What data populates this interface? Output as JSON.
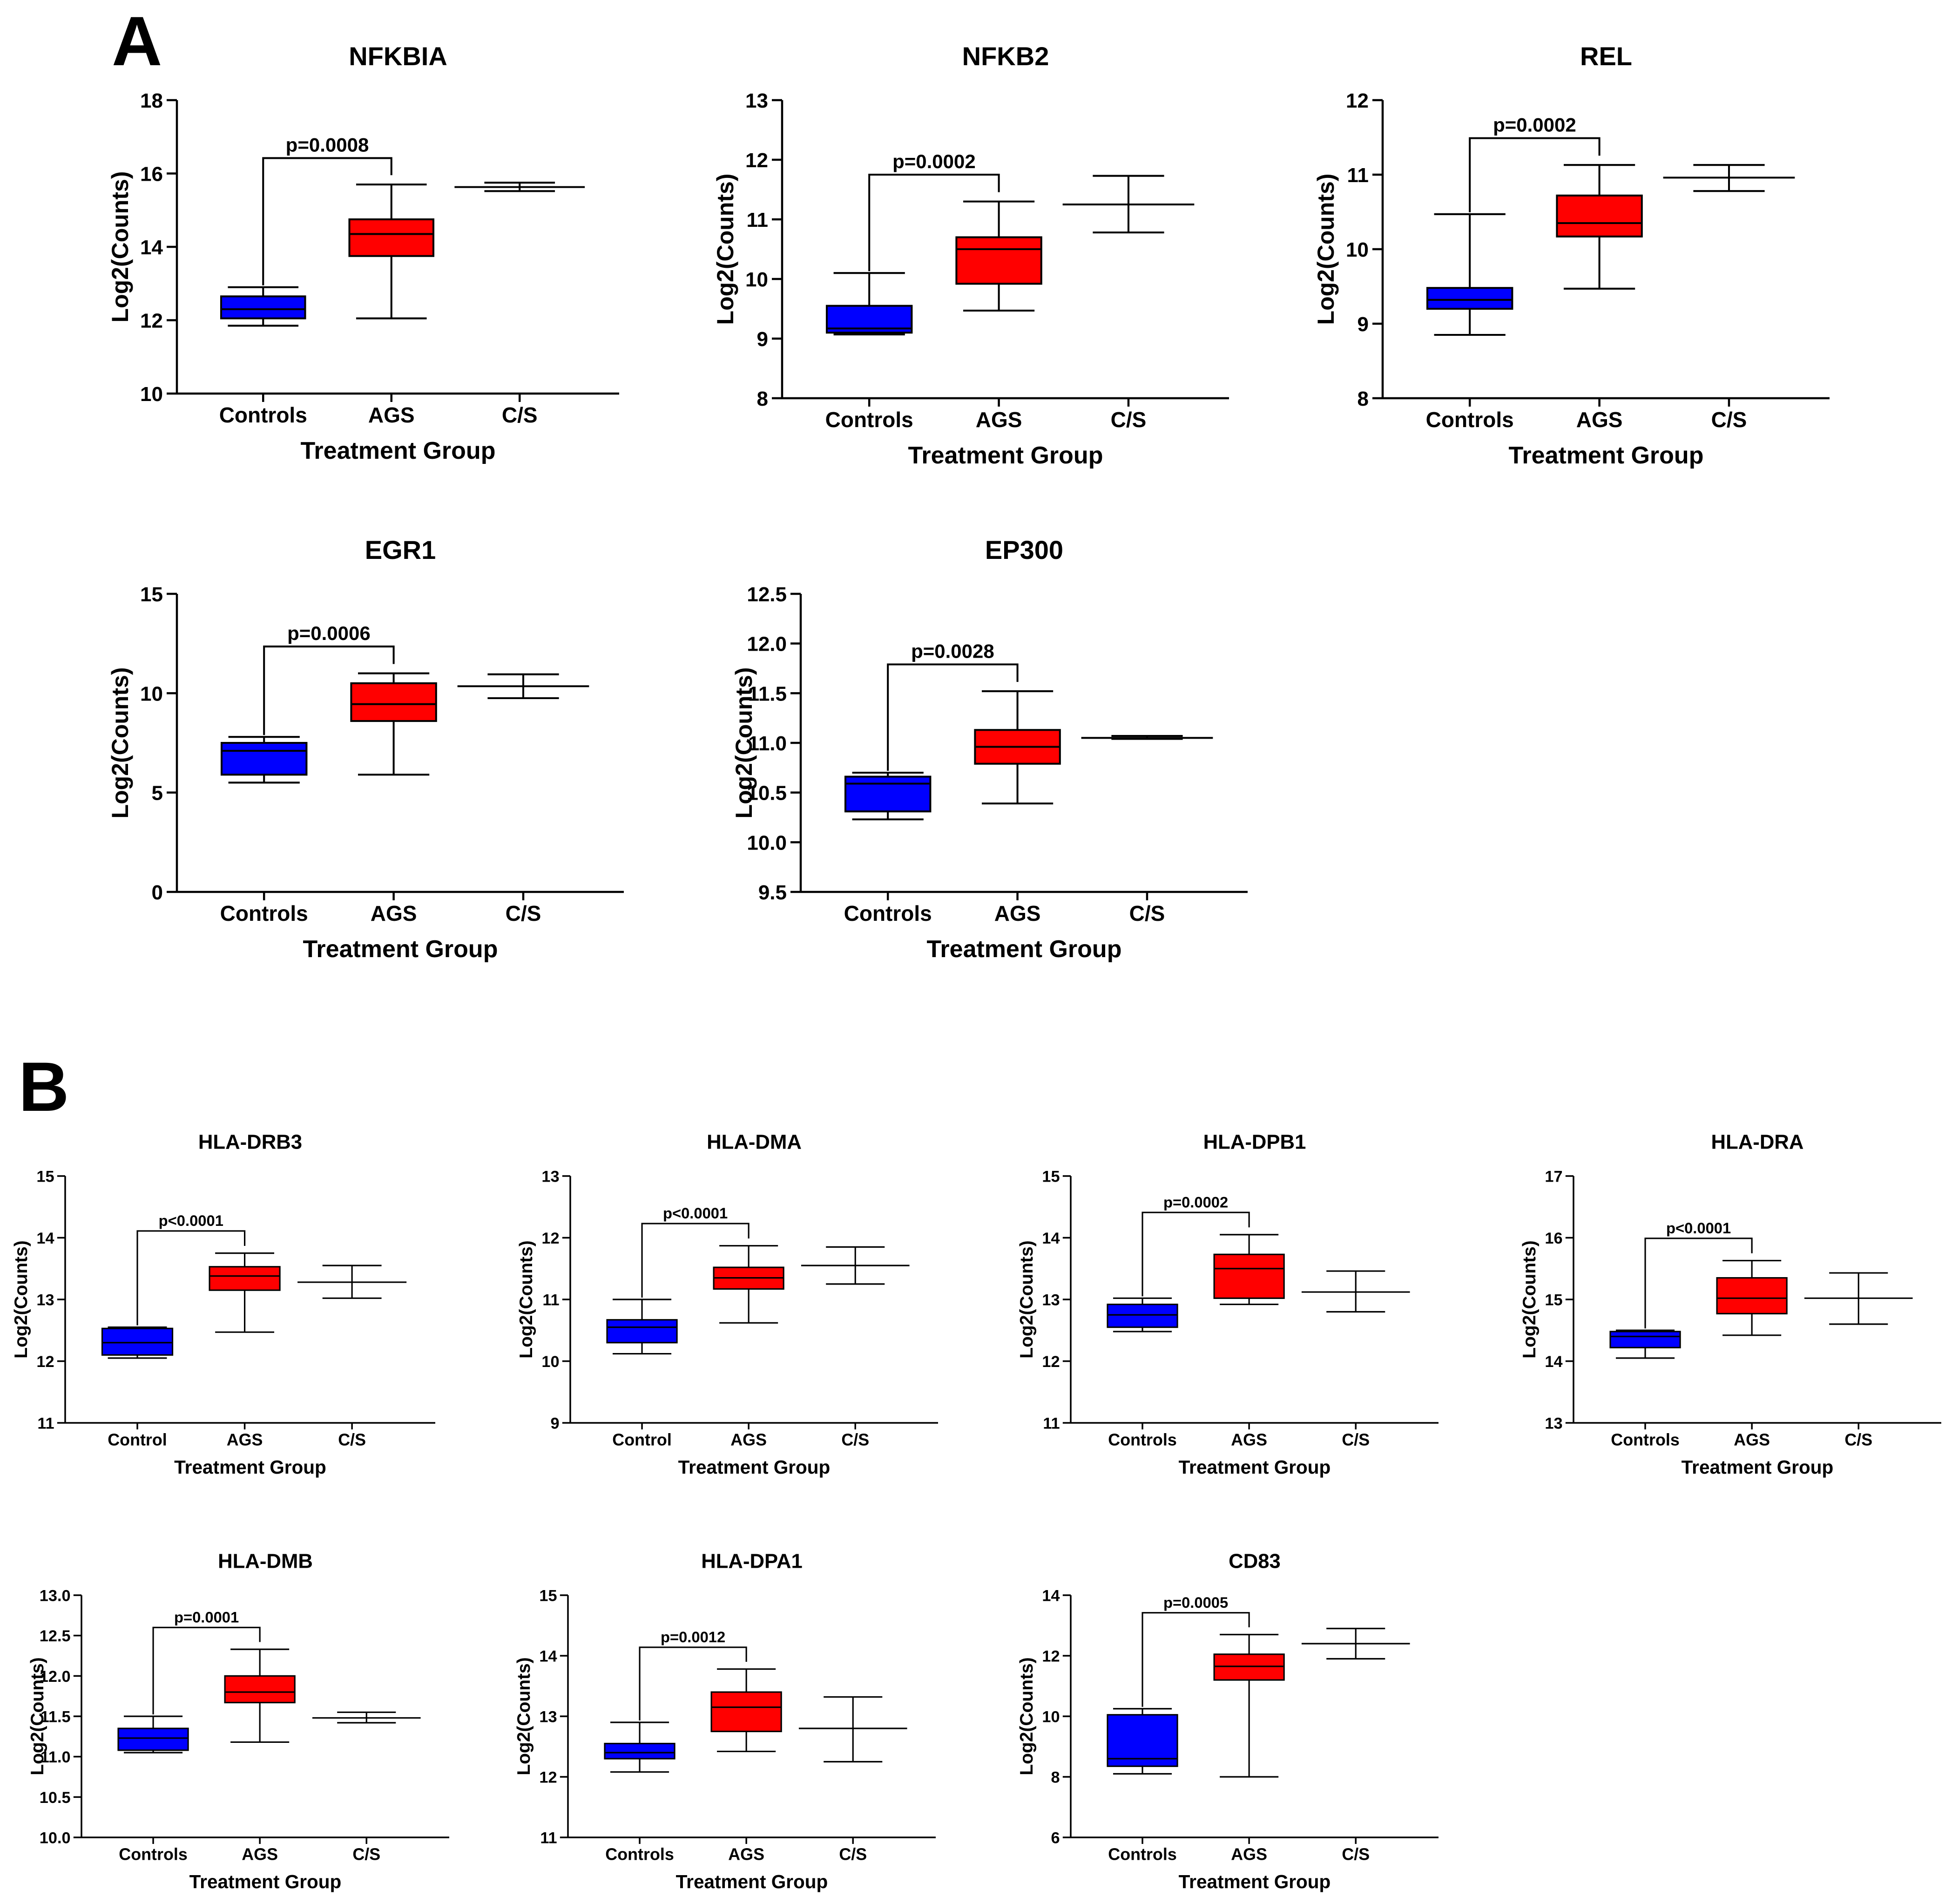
{
  "panels": [
    {
      "letter": "A"
    },
    {
      "letter": "B"
    }
  ],
  "colors": {
    "Controls": "#0000ff",
    "AGS": "#ff0000",
    "C/S": "#000000",
    "axis": "#000000"
  },
  "chart_data": [
    {
      "type": "box",
      "panel": "A",
      "title": "NFKBIA",
      "xlabel": "Treatment Group",
      "ylabel": "Log2(Counts)",
      "ylim": [
        10,
        18
      ],
      "yticks": [
        10,
        12,
        14,
        16,
        18
      ],
      "ytick_labels": [
        "10",
        "12",
        "14",
        "16",
        "18"
      ],
      "categories": [
        "Controls",
        "AGS",
        "C/S"
      ],
      "boxes": [
        {
          "group": "Controls",
          "min": 11.85,
          "q1": 12.05,
          "median": 12.3,
          "q3": 12.65,
          "max": 12.9
        },
        {
          "group": "AGS",
          "min": 12.05,
          "q1": 13.75,
          "median": 14.35,
          "q3": 14.75,
          "max": 15.7
        },
        {
          "group": "C/S",
          "min": 15.52,
          "q1": 15.63,
          "median": 15.63,
          "q3": 15.63,
          "max": 15.75
        }
      ],
      "comparison": {
        "from": "Controls",
        "to": "AGS",
        "label": "p=0.0008"
      }
    },
    {
      "type": "box",
      "panel": "A",
      "title": "NFKB2",
      "xlabel": "Treatment Group",
      "ylabel": "Log2(Counts)",
      "ylim": [
        8,
        13
      ],
      "yticks": [
        8,
        9,
        10,
        11,
        12,
        13
      ],
      "ytick_labels": [
        "8",
        "9",
        "10",
        "11",
        "12",
        "13"
      ],
      "categories": [
        "Controls",
        "AGS",
        "C/S"
      ],
      "boxes": [
        {
          "group": "Controls",
          "min": 9.07,
          "q1": 9.1,
          "median": 9.17,
          "q3": 9.55,
          "max": 10.1
        },
        {
          "group": "AGS",
          "min": 9.47,
          "q1": 9.92,
          "median": 10.5,
          "q3": 10.7,
          "max": 11.3
        },
        {
          "group": "C/S",
          "min": 10.78,
          "q1": 11.25,
          "median": 11.25,
          "q3": 11.25,
          "max": 11.73
        }
      ],
      "comparison": {
        "from": "Controls",
        "to": "AGS",
        "label": "p=0.0002"
      }
    },
    {
      "type": "box",
      "panel": "A",
      "title": "REL",
      "xlabel": "Treatment Group",
      "ylabel": "Log2(Counts)",
      "ylim": [
        8,
        12
      ],
      "yticks": [
        8,
        9,
        10,
        11,
        12
      ],
      "ytick_labels": [
        "8",
        "9",
        "10",
        "11",
        "12"
      ],
      "categories": [
        "Controls",
        "AGS",
        "C/S"
      ],
      "boxes": [
        {
          "group": "Controls",
          "min": 8.85,
          "q1": 9.2,
          "median": 9.32,
          "q3": 9.48,
          "max": 10.47
        },
        {
          "group": "AGS",
          "min": 9.47,
          "q1": 10.17,
          "median": 10.35,
          "q3": 10.72,
          "max": 11.13
        },
        {
          "group": "C/S",
          "min": 10.78,
          "q1": 10.96,
          "median": 10.96,
          "q3": 10.96,
          "max": 11.13
        }
      ],
      "comparison": {
        "from": "Controls",
        "to": "AGS",
        "label": "p=0.0002"
      }
    },
    {
      "type": "box",
      "panel": "A",
      "title": "EGR1",
      "xlabel": "Treatment Group",
      "ylabel": "Log2(Counts)",
      "ylim": [
        0,
        15
      ],
      "yticks": [
        0,
        5,
        10,
        15
      ],
      "ytick_labels": [
        "0",
        "5",
        "10",
        "15"
      ],
      "categories": [
        "Controls",
        "AGS",
        "C/S"
      ],
      "boxes": [
        {
          "group": "Controls",
          "min": 5.5,
          "q1": 5.9,
          "median": 7.1,
          "q3": 7.5,
          "max": 7.8
        },
        {
          "group": "AGS",
          "min": 5.9,
          "q1": 8.6,
          "median": 9.45,
          "q3": 10.5,
          "max": 11.0
        },
        {
          "group": "C/S",
          "min": 9.75,
          "q1": 10.35,
          "median": 10.35,
          "q3": 10.35,
          "max": 10.95
        }
      ],
      "comparison": {
        "from": "Controls",
        "to": "AGS",
        "label": "p=0.0006"
      }
    },
    {
      "type": "box",
      "panel": "A",
      "title": "EP300",
      "xlabel": "Treatment Group",
      "ylabel": "Log2(Counts)",
      "ylim": [
        9.5,
        12.5
      ],
      "yticks": [
        9.5,
        10.0,
        10.5,
        11.0,
        11.5,
        12.0,
        12.5
      ],
      "ytick_labels": [
        "9.5",
        "10.0",
        "10.5",
        "11.0",
        "11.5",
        "12.0",
        "12.5"
      ],
      "categories": [
        "Controls",
        "AGS",
        "C/S"
      ],
      "boxes": [
        {
          "group": "Controls",
          "min": 10.23,
          "q1": 10.31,
          "median": 10.59,
          "q3": 10.66,
          "max": 10.7
        },
        {
          "group": "AGS",
          "min": 10.39,
          "q1": 10.79,
          "median": 10.96,
          "q3": 11.13,
          "max": 11.52
        },
        {
          "group": "C/S",
          "min": 11.04,
          "q1": 11.05,
          "median": 11.05,
          "q3": 11.05,
          "max": 11.07
        }
      ],
      "comparison": {
        "from": "Controls",
        "to": "AGS",
        "label": "p=0.0028"
      }
    },
    {
      "type": "box",
      "panel": "B",
      "title": "HLA-DRB3",
      "xlabel": "Treatment Group",
      "ylabel": "Log2(Counts)",
      "ylim": [
        11,
        15
      ],
      "yticks": [
        11,
        12,
        13,
        14,
        15
      ],
      "ytick_labels": [
        "11",
        "12",
        "13",
        "14",
        "15"
      ],
      "categories": [
        "Control",
        "AGS",
        "C/S"
      ],
      "boxes": [
        {
          "group": "Control",
          "min": 12.05,
          "q1": 12.1,
          "median": 12.3,
          "q3": 12.53,
          "max": 12.55
        },
        {
          "group": "AGS",
          "min": 12.47,
          "q1": 13.15,
          "median": 13.38,
          "q3": 13.53,
          "max": 13.75
        },
        {
          "group": "C/S",
          "min": 13.02,
          "q1": 13.28,
          "median": 13.28,
          "q3": 13.28,
          "max": 13.55
        }
      ],
      "comparison": {
        "from": "Control",
        "to": "AGS",
        "label": "p<0.0001"
      }
    },
    {
      "type": "box",
      "panel": "B",
      "title": "HLA-DMA",
      "xlabel": "Treatment Group",
      "ylabel": "Log2(Counts)",
      "ylim": [
        9,
        13
      ],
      "yticks": [
        9,
        10,
        11,
        12,
        13
      ],
      "ytick_labels": [
        "9",
        "10",
        "11",
        "12",
        "13"
      ],
      "categories": [
        "Control",
        "AGS",
        "C/S"
      ],
      "boxes": [
        {
          "group": "Control",
          "min": 10.12,
          "q1": 10.3,
          "median": 10.55,
          "q3": 10.67,
          "max": 11.0
        },
        {
          "group": "AGS",
          "min": 10.62,
          "q1": 11.17,
          "median": 11.35,
          "q3": 11.52,
          "max": 11.87
        },
        {
          "group": "C/S",
          "min": 11.25,
          "q1": 11.55,
          "median": 11.55,
          "q3": 11.55,
          "max": 11.85
        }
      ],
      "comparison": {
        "from": "Control",
        "to": "AGS",
        "label": "p<0.0001"
      }
    },
    {
      "type": "box",
      "panel": "B",
      "title": "HLA-DPB1",
      "xlabel": "Treatment Group",
      "ylabel": "Log2(Counts)",
      "ylim": [
        11,
        15
      ],
      "yticks": [
        11,
        12,
        13,
        14,
        15
      ],
      "ytick_labels": [
        "11",
        "12",
        "13",
        "14",
        "15"
      ],
      "categories": [
        "Controls",
        "AGS",
        "C/S"
      ],
      "boxes": [
        {
          "group": "Controls",
          "min": 12.48,
          "q1": 12.55,
          "median": 12.75,
          "q3": 12.92,
          "max": 13.02
        },
        {
          "group": "AGS",
          "min": 12.92,
          "q1": 13.02,
          "median": 13.5,
          "q3": 13.73,
          "max": 14.05
        },
        {
          "group": "C/S",
          "min": 12.8,
          "q1": 13.12,
          "median": 13.12,
          "q3": 13.12,
          "max": 13.46
        }
      ],
      "comparison": {
        "from": "Controls",
        "to": "AGS",
        "label": "p=0.0002"
      }
    },
    {
      "type": "box",
      "panel": "B",
      "title": "HLA-DRA",
      "xlabel": "Treatment Group",
      "ylabel": "Log2(Counts)",
      "ylim": [
        13,
        17
      ],
      "yticks": [
        13,
        14,
        15,
        16,
        17
      ],
      "ytick_labels": [
        "13",
        "14",
        "15",
        "16",
        "17"
      ],
      "categories": [
        "Controls",
        "AGS",
        "C/S"
      ],
      "boxes": [
        {
          "group": "Controls",
          "min": 14.05,
          "q1": 14.22,
          "median": 14.4,
          "q3": 14.48,
          "max": 14.5
        },
        {
          "group": "AGS",
          "min": 14.42,
          "q1": 14.77,
          "median": 15.02,
          "q3": 15.35,
          "max": 15.63
        },
        {
          "group": "C/S",
          "min": 14.6,
          "q1": 15.02,
          "median": 15.02,
          "q3": 15.02,
          "max": 15.43
        }
      ],
      "comparison": {
        "from": "Controls",
        "to": "AGS",
        "label": "p<0.0001"
      }
    },
    {
      "type": "box",
      "panel": "B",
      "title": "HLA-DMB",
      "xlabel": "Treatment Group",
      "ylabel": "Log2(Counts)",
      "ylim": [
        10.0,
        13.0
      ],
      "yticks": [
        10.0,
        10.5,
        11.0,
        11.5,
        12.0,
        12.5,
        13.0
      ],
      "ytick_labels": [
        "10.0",
        "10.5",
        "11.0",
        "11.5",
        "12.0",
        "12.5",
        "13.0"
      ],
      "categories": [
        "Controls",
        "AGS",
        "C/S"
      ],
      "boxes": [
        {
          "group": "Controls",
          "min": 11.05,
          "q1": 11.08,
          "median": 11.23,
          "q3": 11.35,
          "max": 11.5
        },
        {
          "group": "AGS",
          "min": 11.18,
          "q1": 11.67,
          "median": 11.8,
          "q3": 12.0,
          "max": 12.33
        },
        {
          "group": "C/S",
          "min": 11.42,
          "q1": 11.48,
          "median": 11.48,
          "q3": 11.48,
          "max": 11.55
        }
      ],
      "comparison": {
        "from": "Controls",
        "to": "AGS",
        "label": "p=0.0001"
      }
    },
    {
      "type": "box",
      "panel": "B",
      "title": "HLA-DPA1",
      "xlabel": "Treatment Group",
      "ylabel": "Log2(Counts)",
      "ylim": [
        11,
        15
      ],
      "yticks": [
        11,
        12,
        13,
        14,
        15
      ],
      "ytick_labels": [
        "11",
        "12",
        "13",
        "14",
        "15"
      ],
      "categories": [
        "Controls",
        "AGS",
        "C/S"
      ],
      "boxes": [
        {
          "group": "Controls",
          "min": 12.08,
          "q1": 12.3,
          "median": 12.4,
          "q3": 12.55,
          "max": 12.9
        },
        {
          "group": "AGS",
          "min": 12.42,
          "q1": 12.75,
          "median": 13.15,
          "q3": 13.4,
          "max": 13.78
        },
        {
          "group": "C/S",
          "min": 12.25,
          "q1": 12.8,
          "median": 12.8,
          "q3": 12.8,
          "max": 13.32
        }
      ],
      "comparison": {
        "from": "Controls",
        "to": "AGS",
        "label": "p=0.0012"
      }
    },
    {
      "type": "box",
      "panel": "B",
      "title": "CD83",
      "xlabel": "Treatment Group",
      "ylabel": "Log2(Counts)",
      "ylim": [
        6,
        14
      ],
      "yticks": [
        6,
        8,
        10,
        12,
        14
      ],
      "ytick_labels": [
        "6",
        "8",
        "10",
        "12",
        "14"
      ],
      "categories": [
        "Controls",
        "AGS",
        "C/S"
      ],
      "boxes": [
        {
          "group": "Controls",
          "min": 8.1,
          "q1": 8.35,
          "median": 8.6,
          "q3": 10.05,
          "max": 10.25
        },
        {
          "group": "AGS",
          "min": 8.0,
          "q1": 11.2,
          "median": 11.65,
          "q3": 12.05,
          "max": 12.7
        },
        {
          "group": "C/S",
          "min": 11.9,
          "q1": 12.4,
          "median": 12.4,
          "q3": 12.4,
          "max": 12.9
        }
      ],
      "comparison": {
        "from": "Controls",
        "to": "AGS",
        "label": "p=0.0005"
      }
    }
  ]
}
